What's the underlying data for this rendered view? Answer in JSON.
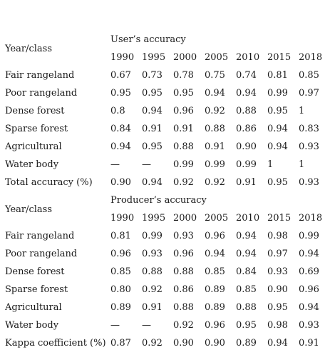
{
  "columns": [
    "1990",
    "1995",
    "2000",
    "2005",
    "2010",
    "2015",
    "2018"
  ],
  "users": {
    "heading": "User’s accuracy",
    "row_header": "Year/class",
    "rows": [
      {
        "label": "Fair rangeland",
        "values": [
          "0.67",
          "0.73",
          "0.78",
          "0.75",
          "0.74",
          "0.81",
          "0.85"
        ]
      },
      {
        "label": "Poor rangeland",
        "values": [
          "0.95",
          "0.95",
          "0.95",
          "0.94",
          "0.94",
          "0.99",
          "0.97"
        ]
      },
      {
        "label": "Dense forest",
        "values": [
          "0.8",
          "0.94",
          "0.96",
          "0.92",
          "0.88",
          "0.95",
          "1"
        ]
      },
      {
        "label": "Sparse forest",
        "values": [
          "0.84",
          "0.91",
          "0.91",
          "0.88",
          "0.86",
          "0.94",
          "0.83"
        ]
      },
      {
        "label": "Agricultural",
        "values": [
          "0.94",
          "0.95",
          "0.88",
          "0.91",
          "0.90",
          "0.94",
          "0.93"
        ]
      },
      {
        "label": "Water body",
        "values": [
          "—",
          "—",
          "0.99",
          "0.99",
          "0.99",
          "1",
          "1"
        ]
      },
      {
        "label": "Total accuracy (%)",
        "values": [
          "0.90",
          "0.94",
          "0.92",
          "0.92",
          "0.91",
          "0.95",
          "0.93"
        ]
      }
    ]
  },
  "producers": {
    "heading": "Producer’s accuracy",
    "row_header": "Year/class",
    "rows": [
      {
        "label": "Fair rangeland",
        "values": [
          "0.81",
          "0.99",
          "0.93",
          "0.96",
          "0.94",
          "0.98",
          "0.99"
        ]
      },
      {
        "label": "Poor rangeland",
        "values": [
          "0.96",
          "0.93",
          "0.96",
          "0.94",
          "0.94",
          "0.97",
          "0.94"
        ]
      },
      {
        "label": "Dense forest",
        "values": [
          "0.85",
          "0.88",
          "0.88",
          "0.85",
          "0.84",
          "0.93",
          "0.69"
        ]
      },
      {
        "label": "Sparse forest",
        "values": [
          "0.80",
          "0.92",
          "0.86",
          "0.89",
          "0.85",
          "0.90",
          "0.96"
        ]
      },
      {
        "label": "Agricultural",
        "values": [
          "0.89",
          "0.91",
          "0.88",
          "0.89",
          "0.88",
          "0.95",
          "0.94"
        ]
      },
      {
        "label": "Water body",
        "values": [
          "—",
          "—",
          "0.92",
          "0.96",
          "0.95",
          "0.98",
          "0.93"
        ]
      },
      {
        "label": "Kappa coefficient (%)",
        "values": [
          "0.87",
          "0.92",
          "0.90",
          "0.90",
          "0.89",
          "0.94",
          "0.91"
        ]
      }
    ]
  }
}
